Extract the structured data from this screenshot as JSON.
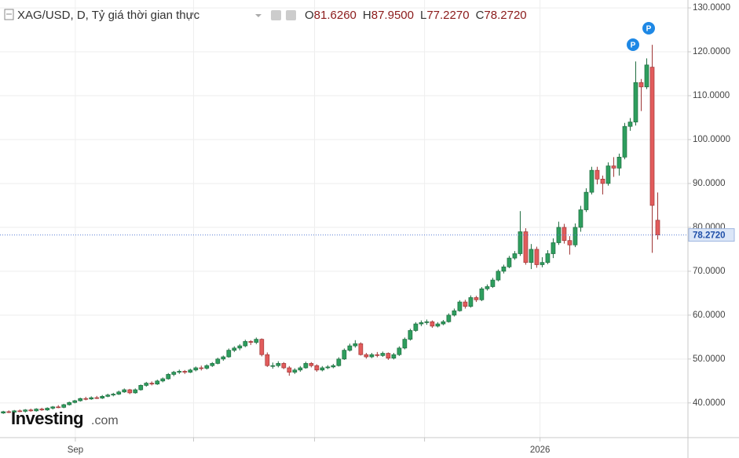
{
  "chart_data": {
    "type": "candlestick",
    "title": "XAG/USD, D, Tỷ giá thời gian thực",
    "readout": [
      {
        "prefix": "O",
        "value": 81.626,
        "label": "81.6260"
      },
      {
        "prefix": "H",
        "value": 87.95,
        "label": "87.9500"
      },
      {
        "prefix": "L",
        "value": 77.227,
        "label": "77.2270"
      },
      {
        "prefix": "C",
        "value": 78.272,
        "label": "78.2720"
      }
    ],
    "current_price": {
      "value": 78.272,
      "label": "78.2720"
    },
    "watermark": [
      "Investing",
      ".com"
    ],
    "ylim": [
      32.1,
      131.8
    ],
    "yticks": [
      {
        "value": 40,
        "label": "40.0000"
      },
      {
        "value": 50,
        "label": "50.0000"
      },
      {
        "value": 60,
        "label": "60.0000"
      },
      {
        "value": 70,
        "label": "70.0000"
      },
      {
        "value": 80,
        "label": "80.0000"
      },
      {
        "value": 90,
        "label": "90.0000"
      },
      {
        "value": 100,
        "label": "100.0000"
      },
      {
        "value": 110,
        "label": "110.0000"
      },
      {
        "value": 120,
        "label": "120.0000"
      },
      {
        "value": 130,
        "label": "130.0000"
      }
    ],
    "xlim": [
      -0.6,
      124.5
    ],
    "xticks": [
      {
        "value": 13.1,
        "label": "Sep"
      },
      {
        "value": 34.6,
        "label": null
      },
      {
        "value": 56.6,
        "label": null
      },
      {
        "value": 76.6,
        "label": null
      },
      {
        "value": 97.6,
        "label": "2026"
      }
    ],
    "grid": true,
    "up_color": "#2e9e5e",
    "down_color": "#e25c5c",
    "series": [
      {
        "name": "XAG/USD",
        "candles": [
          [
            37.7,
            38.2,
            37.5,
            38.0
          ],
          [
            38.0,
            38.3,
            37.7,
            37.9
          ],
          [
            37.9,
            38.4,
            37.6,
            38.2
          ],
          [
            38.2,
            38.5,
            37.9,
            38.1
          ],
          [
            38.1,
            38.6,
            37.8,
            38.4
          ],
          [
            38.4,
            38.7,
            38.0,
            38.2
          ],
          [
            38.2,
            38.8,
            38.0,
            38.6
          ],
          [
            38.6,
            38.9,
            38.2,
            38.4
          ],
          [
            38.4,
            39.0,
            38.2,
            38.8
          ],
          [
            38.8,
            39.3,
            38.5,
            39.1
          ],
          [
            39.1,
            39.5,
            38.8,
            39.0
          ],
          [
            39.0,
            39.8,
            38.8,
            39.6
          ],
          [
            39.6,
            40.3,
            39.4,
            40.1
          ],
          [
            40.1,
            40.7,
            39.9,
            40.5
          ],
          [
            40.5,
            41.2,
            40.3,
            41.0
          ],
          [
            41.0,
            41.4,
            40.6,
            40.9
          ],
          [
            40.9,
            41.5,
            40.7,
            41.2
          ],
          [
            41.2,
            41.6,
            40.9,
            41.1
          ],
          [
            41.1,
            41.8,
            40.9,
            41.5
          ],
          [
            41.5,
            42.1,
            41.3,
            41.8
          ],
          [
            41.8,
            42.3,
            41.5,
            42.0
          ],
          [
            42.0,
            42.8,
            41.8,
            42.5
          ],
          [
            42.5,
            43.3,
            42.3,
            43.0
          ],
          [
            43.0,
            43.2,
            42.0,
            42.3
          ],
          [
            42.3,
            43.3,
            42.1,
            43.0
          ],
          [
            43.0,
            44.2,
            42.8,
            44.0
          ],
          [
            44.0,
            44.8,
            43.7,
            44.5
          ],
          [
            44.5,
            44.9,
            44.0,
            44.3
          ],
          [
            44.3,
            45.3,
            44.1,
            45.0
          ],
          [
            45.0,
            45.8,
            44.7,
            45.5
          ],
          [
            45.5,
            46.8,
            45.3,
            46.5
          ],
          [
            46.5,
            47.3,
            46.1,
            47.0
          ],
          [
            47.0,
            47.6,
            46.6,
            47.2
          ],
          [
            47.2,
            47.5,
            46.6,
            47.0
          ],
          [
            47.0,
            47.8,
            46.8,
            47.5
          ],
          [
            47.5,
            48.3,
            47.2,
            48.0
          ],
          [
            48.0,
            48.5,
            47.4,
            47.9
          ],
          [
            47.9,
            48.8,
            47.6,
            48.5
          ],
          [
            48.5,
            49.3,
            48.2,
            49.0
          ],
          [
            49.0,
            50.3,
            48.8,
            50.0
          ],
          [
            50.0,
            50.8,
            49.6,
            50.5
          ],
          [
            50.5,
            52.4,
            50.3,
            52.0
          ],
          [
            52.0,
            52.9,
            51.6,
            52.5
          ],
          [
            52.5,
            53.4,
            52.0,
            53.0
          ],
          [
            53.0,
            54.4,
            52.7,
            54.0
          ],
          [
            54.0,
            54.3,
            53.2,
            53.8
          ],
          [
            53.8,
            54.9,
            53.4,
            54.5
          ],
          [
            54.5,
            54.7,
            50.6,
            51.0
          ],
          [
            51.0,
            51.5,
            48.2,
            48.5
          ],
          [
            48.5,
            49.2,
            47.8,
            48.5
          ],
          [
            48.5,
            49.5,
            48.1,
            49.0
          ],
          [
            49.0,
            49.3,
            47.7,
            48.0
          ],
          [
            48.0,
            48.4,
            46.2,
            47.0
          ],
          [
            47.0,
            47.9,
            46.6,
            47.5
          ],
          [
            47.5,
            48.4,
            47.1,
            48.0
          ],
          [
            48.0,
            49.4,
            47.8,
            49.0
          ],
          [
            49.0,
            49.3,
            48.1,
            48.5
          ],
          [
            48.5,
            48.8,
            47.1,
            47.5
          ],
          [
            47.5,
            48.4,
            47.2,
            48.0
          ],
          [
            48.0,
            48.6,
            47.7,
            48.2
          ],
          [
            48.2,
            48.9,
            47.9,
            48.5
          ],
          [
            48.5,
            50.4,
            48.3,
            50.0
          ],
          [
            50.0,
            52.4,
            49.8,
            52.0
          ],
          [
            52.0,
            53.5,
            51.7,
            53.0
          ],
          [
            53.0,
            54.3,
            52.6,
            53.5
          ],
          [
            53.5,
            53.8,
            50.8,
            51.0
          ],
          [
            51.0,
            51.4,
            50.1,
            50.5
          ],
          [
            50.5,
            51.4,
            50.2,
            51.0
          ],
          [
            51.0,
            51.6,
            50.4,
            50.8
          ],
          [
            50.8,
            51.7,
            50.5,
            51.3
          ],
          [
            51.3,
            51.5,
            49.8,
            50.2
          ],
          [
            50.2,
            51.4,
            49.9,
            51.0
          ],
          [
            51.0,
            52.9,
            50.7,
            52.5
          ],
          [
            52.5,
            54.9,
            52.2,
            54.5
          ],
          [
            54.5,
            56.9,
            54.2,
            56.5
          ],
          [
            56.5,
            58.4,
            56.2,
            58.0
          ],
          [
            58.0,
            58.8,
            57.5,
            58.3
          ],
          [
            58.3,
            59.0,
            57.8,
            58.5
          ],
          [
            58.5,
            58.8,
            57.1,
            57.5
          ],
          [
            57.5,
            58.4,
            57.2,
            58.0
          ],
          [
            58.0,
            58.9,
            57.7,
            58.5
          ],
          [
            58.5,
            60.4,
            58.3,
            60.0
          ],
          [
            60.0,
            61.5,
            59.7,
            61.0
          ],
          [
            61.0,
            63.4,
            60.8,
            63.0
          ],
          [
            63.0,
            63.5,
            61.5,
            62.0
          ],
          [
            62.0,
            64.5,
            61.7,
            64.0
          ],
          [
            64.0,
            64.4,
            63.0,
            63.5
          ],
          [
            63.5,
            66.4,
            63.2,
            66.0
          ],
          [
            66.0,
            67.0,
            65.6,
            66.5
          ],
          [
            66.5,
            68.5,
            66.2,
            68.0
          ],
          [
            68.0,
            70.4,
            67.7,
            70.0
          ],
          [
            70.0,
            71.5,
            69.5,
            71.0
          ],
          [
            71.0,
            73.5,
            70.7,
            73.0
          ],
          [
            73.0,
            74.6,
            72.6,
            74.0
          ],
          [
            74.0,
            83.7,
            73.5,
            79.0
          ],
          [
            79.0,
            79.8,
            71.5,
            72.0
          ],
          [
            72.0,
            76.2,
            70.5,
            75.0
          ],
          [
            75.0,
            75.6,
            70.8,
            71.5
          ],
          [
            71.5,
            73.2,
            70.9,
            72.0
          ],
          [
            72.0,
            74.8,
            71.6,
            74.0
          ],
          [
            74.0,
            77.5,
            73.0,
            76.5
          ],
          [
            76.5,
            81.3,
            76.0,
            80.0
          ],
          [
            80.0,
            80.8,
            76.3,
            77.0
          ],
          [
            77.0,
            78.0,
            73.8,
            76.0
          ],
          [
            76.0,
            80.9,
            75.5,
            80.0
          ],
          [
            80.0,
            84.9,
            79.0,
            84.0
          ],
          [
            84.0,
            88.9,
            83.5,
            88.0
          ],
          [
            88.0,
            93.8,
            87.5,
            93.0
          ],
          [
            93.0,
            93.8,
            89.8,
            91.0
          ],
          [
            91.0,
            91.8,
            87.5,
            90.0
          ],
          [
            90.0,
            94.8,
            89.5,
            94.0
          ],
          [
            94.0,
            96.0,
            91.5,
            93.5
          ],
          [
            93.5,
            96.8,
            91.8,
            96.0
          ],
          [
            96.0,
            103.8,
            95.5,
            103.0
          ],
          [
            103.0,
            104.9,
            102.0,
            104.0
          ],
          [
            104.0,
            117.8,
            103.2,
            113.0
          ],
          [
            113.0,
            113.8,
            106.5,
            112.0
          ],
          [
            112.0,
            118.5,
            111.5,
            117.0
          ],
          [
            116.5,
            121.6,
            74.2,
            85.0
          ],
          [
            81.626,
            87.95,
            77.227,
            78.272
          ]
        ]
      }
    ]
  }
}
